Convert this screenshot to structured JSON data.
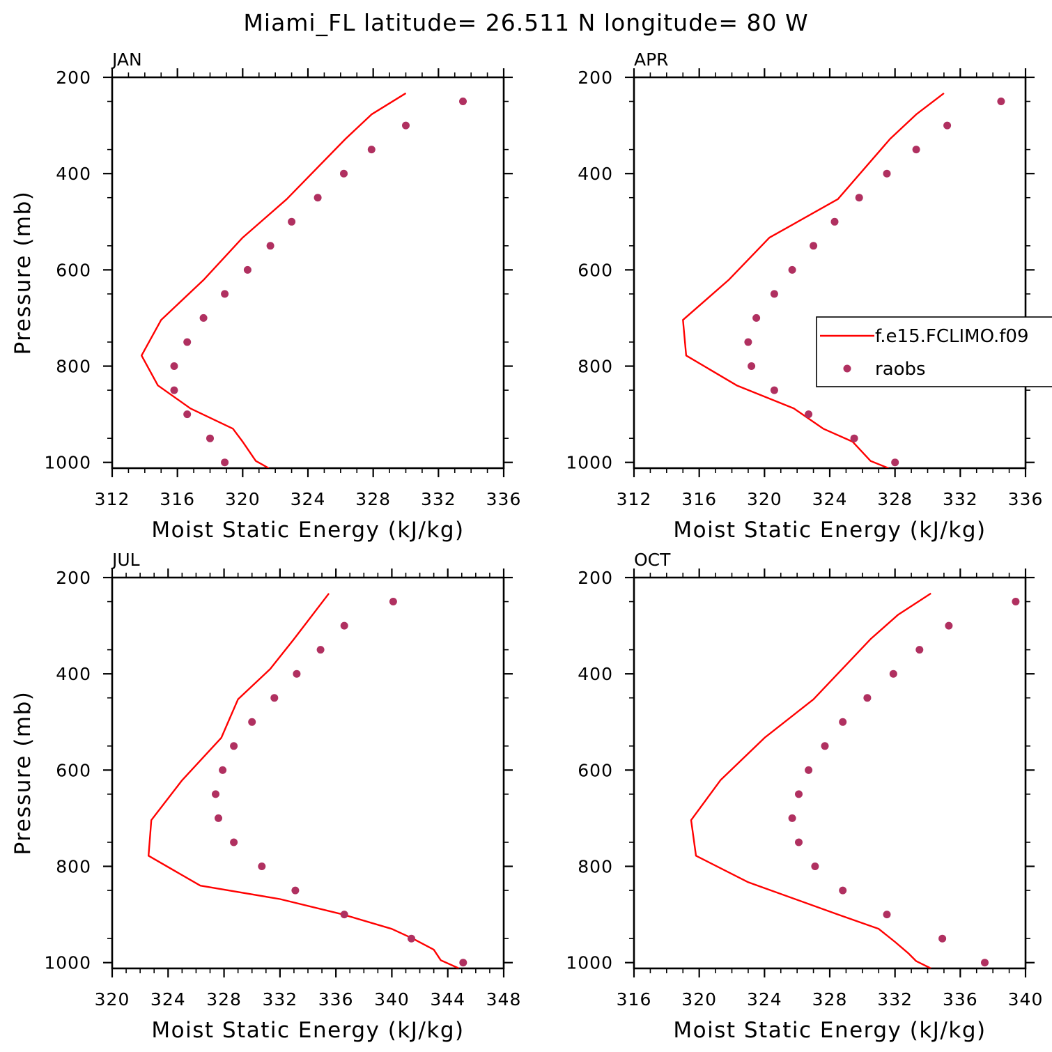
{
  "title": "Miami_FL  latitude= 26.511 N longitude= 80 W",
  "colors": {
    "model": "#ff0000",
    "obs": "#b03060"
  },
  "legend": {
    "model_label": "f.e15.FCLIMO.f09",
    "obs_label": "raobs"
  },
  "chart_data": [
    {
      "type": "line",
      "panel": "JAN",
      "xlabel": "Moist Static Energy (kJ/kg)",
      "ylabel": "Pressure (mb)",
      "xlim": [
        312,
        336
      ],
      "xticks": [
        312,
        316,
        320,
        324,
        328,
        332,
        336
      ],
      "ylim": [
        1012,
        200
      ],
      "yticks": [
        200,
        400,
        600,
        800,
        1000
      ],
      "series": [
        {
          "name": "f.e15.FCLIMO.f09",
          "style": "line",
          "x": [
            330.0,
            327.9,
            326.3,
            322.7,
            320.0,
            317.6,
            315.0,
            313.8,
            314.8,
            316.8,
            319.4,
            320.0,
            320.8,
            321.6
          ],
          "y": [
            233,
            277,
            328,
            453,
            533,
            621,
            704,
            778,
            840,
            888,
            930,
            957,
            997,
            1012
          ]
        },
        {
          "name": "raobs",
          "style": "markers",
          "x": [
            333.5,
            330.0,
            327.9,
            326.2,
            324.6,
            323.0,
            321.7,
            320.3,
            318.9,
            317.6,
            316.6,
            315.8,
            315.8,
            316.6,
            318.0,
            318.9
          ],
          "y": [
            250,
            300,
            350,
            400,
            450,
            500,
            550,
            600,
            650,
            700,
            750,
            800,
            850,
            900,
            950,
            1000
          ]
        }
      ]
    },
    {
      "type": "line",
      "panel": "APR",
      "xlabel": "Moist Static Energy (kJ/kg)",
      "ylabel": "",
      "xlim": [
        312,
        336
      ],
      "xticks": [
        312,
        316,
        320,
        324,
        328,
        332,
        336
      ],
      "ylim": [
        1012,
        200
      ],
      "yticks": [
        200,
        400,
        600,
        800,
        1000
      ],
      "series": [
        {
          "name": "f.e15.FCLIMO.f09",
          "style": "line",
          "x": [
            331.0,
            329.3,
            327.7,
            324.5,
            320.3,
            317.8,
            315.0,
            315.2,
            318.3,
            321.8,
            323.6,
            325.4,
            326.5,
            327.6
          ],
          "y": [
            233,
            277,
            328,
            453,
            533,
            621,
            704,
            778,
            840,
            888,
            930,
            957,
            997,
            1012
          ]
        },
        {
          "name": "raobs",
          "style": "markers",
          "x": [
            334.5,
            331.2,
            329.3,
            327.5,
            325.8,
            324.3,
            323.0,
            321.7,
            320.6,
            319.5,
            319.0,
            319.2,
            320.6,
            322.7,
            325.5,
            328.0
          ],
          "y": [
            250,
            300,
            350,
            400,
            450,
            500,
            550,
            600,
            650,
            700,
            750,
            800,
            850,
            900,
            950,
            1000
          ]
        }
      ]
    },
    {
      "type": "line",
      "panel": "JUL",
      "xlabel": "Moist Static Energy (kJ/kg)",
      "ylabel": "Pressure (mb)",
      "xlim": [
        320,
        348
      ],
      "xticks": [
        320,
        324,
        328,
        332,
        336,
        340,
        344,
        348
      ],
      "ylim": [
        1012,
        200
      ],
      "yticks": [
        200,
        400,
        600,
        800,
        1000
      ],
      "series": [
        {
          "name": "f.e15.FCLIMO.f09",
          "style": "line",
          "x": [
            335.5,
            333.0,
            331.3,
            329.0,
            327.8,
            325.0,
            322.8,
            322.6,
            326.3,
            332.0,
            336.5,
            340.0,
            341.5,
            343.0,
            343.5,
            344.8
          ],
          "y": [
            233,
            328,
            390,
            453,
            533,
            621,
            704,
            778,
            840,
            868,
            900,
            930,
            950,
            973,
            995,
            1012
          ]
        },
        {
          "name": "raobs",
          "style": "markers",
          "x": [
            340.1,
            336.6,
            334.9,
            333.2,
            331.6,
            330.0,
            328.7,
            327.9,
            327.4,
            327.6,
            328.7,
            330.7,
            333.1,
            336.6,
            341.4,
            345.1
          ],
          "y": [
            250,
            300,
            350,
            400,
            450,
            500,
            550,
            600,
            650,
            700,
            750,
            800,
            850,
            900,
            950,
            1000
          ]
        }
      ]
    },
    {
      "type": "line",
      "panel": "OCT",
      "xlabel": "Moist Static Energy (kJ/kg)",
      "ylabel": "",
      "xlim": [
        316,
        340
      ],
      "xticks": [
        316,
        320,
        324,
        328,
        332,
        336,
        340
      ],
      "ylim": [
        1012,
        200
      ],
      "yticks": [
        200,
        400,
        600,
        800,
        1000
      ],
      "series": [
        {
          "name": "f.e15.FCLIMO.f09",
          "style": "line",
          "x": [
            334.2,
            332.2,
            330.5,
            327.0,
            324.0,
            321.3,
            319.5,
            319.8,
            323.0,
            328.5,
            331.0,
            332.0,
            332.8,
            333.3,
            334.2
          ],
          "y": [
            233,
            277,
            328,
            453,
            533,
            621,
            704,
            778,
            833,
            900,
            930,
            957,
            980,
            997,
            1012
          ]
        },
        {
          "name": "raobs",
          "style": "markers",
          "x": [
            339.4,
            335.3,
            333.5,
            331.9,
            330.3,
            328.8,
            327.7,
            326.7,
            326.1,
            325.7,
            326.1,
            327.1,
            328.8,
            331.5,
            334.9,
            337.5
          ],
          "y": [
            250,
            300,
            350,
            400,
            450,
            500,
            550,
            600,
            650,
            700,
            750,
            800,
            850,
            900,
            950,
            1000
          ]
        }
      ]
    }
  ]
}
